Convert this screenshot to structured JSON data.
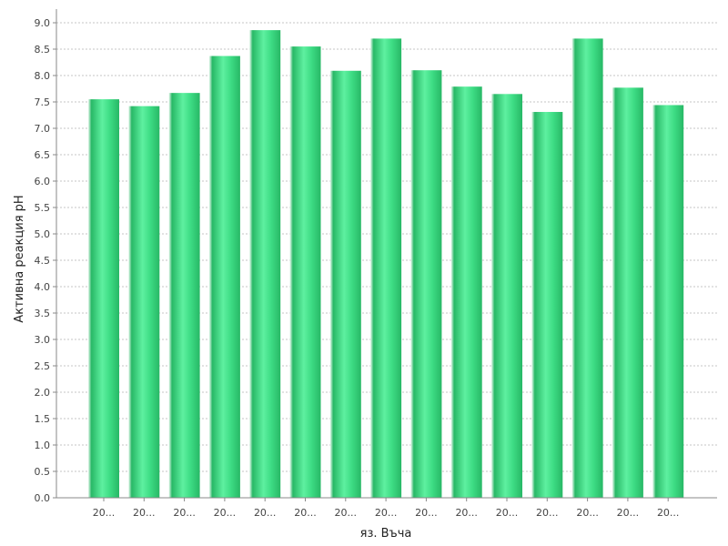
{
  "chart_data": {
    "type": "bar",
    "categories": [
      "20...",
      "20...",
      "20...",
      "20...",
      "20...",
      "20...",
      "20...",
      "20...",
      "20...",
      "20...",
      "20...",
      "20...",
      "20...",
      "20...",
      "20..."
    ],
    "values": [
      7.55,
      7.42,
      7.67,
      8.37,
      8.86,
      8.55,
      8.09,
      8.7,
      8.1,
      7.79,
      7.65,
      7.31,
      8.7,
      7.77,
      7.44
    ],
    "title": "",
    "xlabel": "яз. Въча",
    "ylabel": "Активна реакция pH",
    "ylim": [
      0,
      9
    ],
    "ytick_step": 0.5,
    "grid": true,
    "colors": {
      "bar_light": "#5ef0a0",
      "bar_mid": "#3ddc84",
      "bar_dark": "#28b866",
      "bar_edge": "#e8f8ee"
    }
  }
}
